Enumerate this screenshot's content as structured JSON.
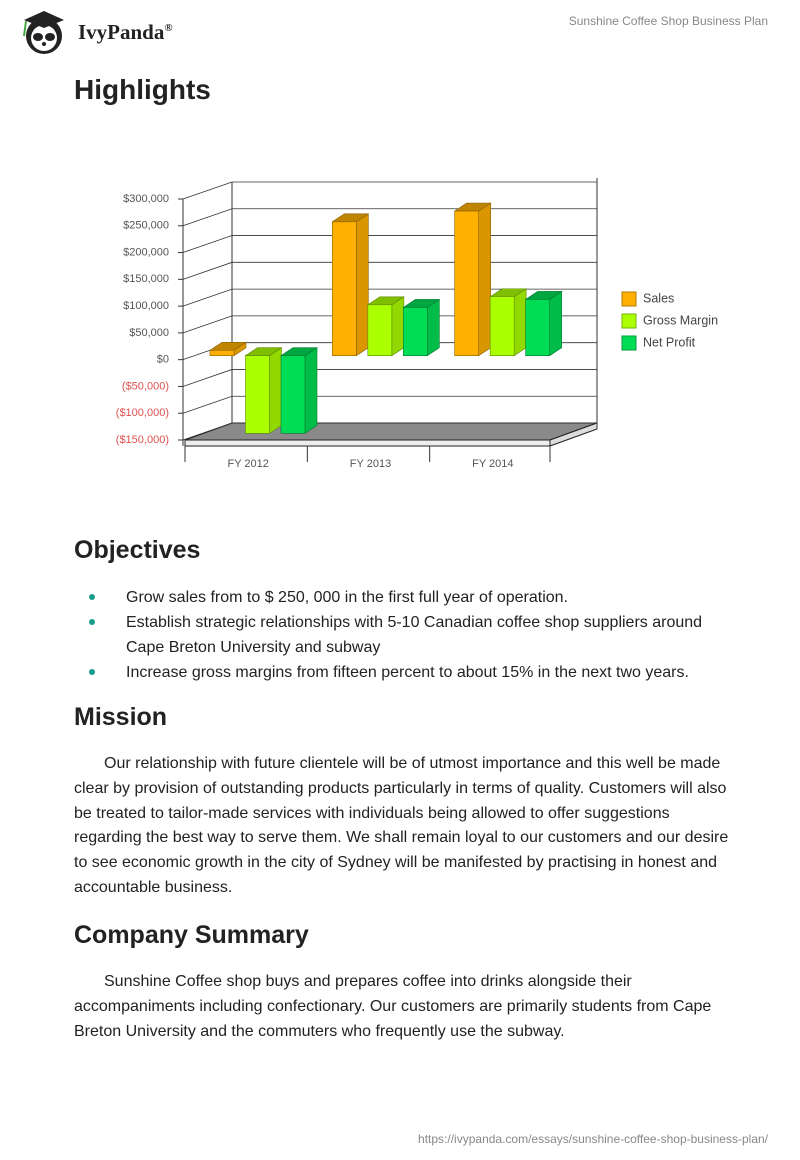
{
  "header": {
    "brand": "IvyPanda",
    "brand_mark": "®",
    "document_title": "Sunshine Coffee Shop Business Plan"
  },
  "sections": [
    {
      "heading": "Highlights"
    },
    {
      "heading": "Objectives",
      "items": [
        "Grow sales from to $ 250, 000 in the first full year of operation.",
        "Establish strategic relationships with 5-10 Canadian coffee shop suppliers around Cape Breton University and subway",
        "Increase gross margins from fifteen percent to about 15% in the next two years."
      ]
    },
    {
      "heading": "Mission",
      "paragraph": "Our relationship with future clientele will be of utmost importance and this well be made clear by provision of outstanding products particularly in terms of quality. Customers will also be treated to tailor-made services with individuals being allowed to offer suggestions regarding the best way to serve them. We shall remain loyal to our customers and our desire to see economic growth in the city of Sydney will be manifested by practising in honest and accountable business."
    },
    {
      "heading": "Company Summary",
      "paragraph": "Sunshine Coffee shop buys and prepares coffee into drinks alongside their accompaniments including confectionary. Our customers are primarily students from Cape Breton University and the commuters who frequently use the subway."
    }
  ],
  "chart_data": {
    "type": "bar",
    "categories": [
      "FY 2012",
      "FY 2013",
      "FY 2014"
    ],
    "series": [
      {
        "name": "Sales",
        "color": "#ffb000",
        "values": [
          10000,
          250000,
          270000
        ]
      },
      {
        "name": "Gross Margin",
        "color": "#aaff00",
        "values": [
          -145000,
          95000,
          110000
        ]
      },
      {
        "name": "Net Profit",
        "color": "#00dd55",
        "values": [
          -145000,
          90000,
          105000
        ]
      }
    ],
    "ylim": [
      -150000,
      300000
    ],
    "yticks": [
      {
        "value": -150000,
        "label": "($150,000)"
      },
      {
        "value": -100000,
        "label": "($100,000)"
      },
      {
        "value": -50000,
        "label": "($50,000)"
      },
      {
        "value": 0,
        "label": "$0"
      },
      {
        "value": 50000,
        "label": "$50,000"
      },
      {
        "value": 100000,
        "label": "$100,000"
      },
      {
        "value": 150000,
        "label": "$150,000"
      },
      {
        "value": 200000,
        "label": "$200,000"
      },
      {
        "value": 250000,
        "label": "$250,000"
      },
      {
        "value": 300000,
        "label": "$300,000"
      }
    ],
    "grid": true,
    "legend": "right"
  },
  "footer": {
    "url": "https://ivypanda.com/essays/sunshine-coffee-shop-business-plan/"
  }
}
